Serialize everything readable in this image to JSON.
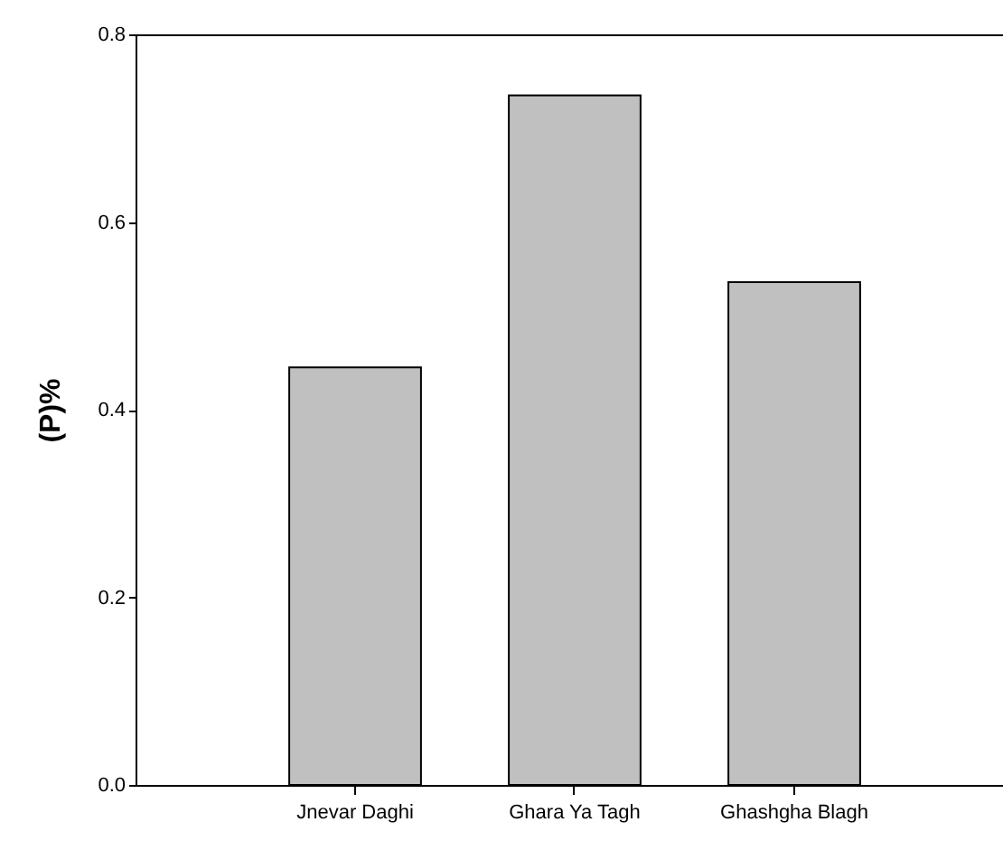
{
  "chart_data": {
    "type": "bar",
    "ylabel": "(P)%",
    "categories": [
      "Jnevar Daghi",
      "Ghara Ya Tagh",
      "Ghashgha Blagh"
    ],
    "values": [
      0.445,
      0.735,
      0.536
    ],
    "color": "#c0c0c0",
    "ylim": [
      0,
      0.8
    ],
    "yticks": [
      {
        "value": 0,
        "label": "0.0"
      },
      0.2,
      0.4,
      0.6,
      0.8
    ],
    "grid": false
  }
}
